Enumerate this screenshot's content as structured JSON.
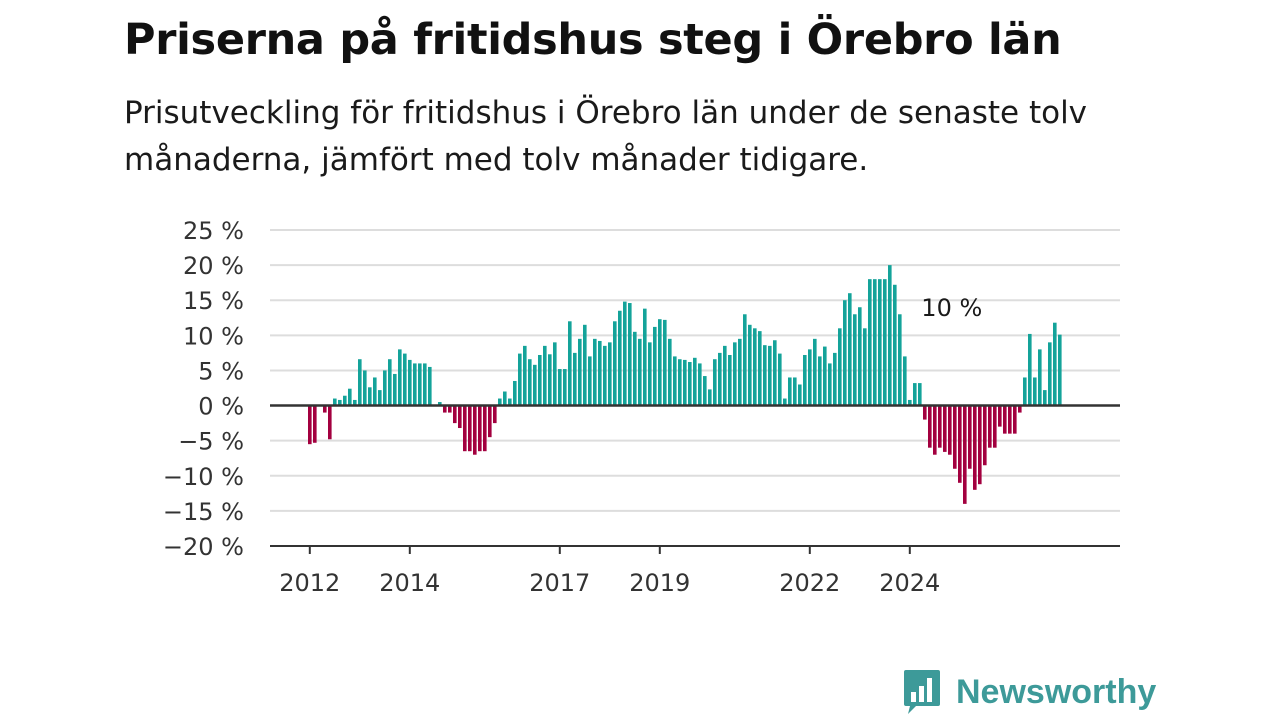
{
  "header": {
    "title": "Priserna på fritidshus steg i Örebro län",
    "subtitle": "Prisutveckling för fritidshus i Örebro län under de senaste tolv månaderna, jämfört med tolv månader tidigare."
  },
  "branding": {
    "name": "Newsworthy",
    "logo_icon": "bar-chart-icon"
  },
  "chart_data": {
    "type": "bar",
    "title": "",
    "xlabel": "",
    "ylabel": "",
    "ylim": [
      -20,
      25
    ],
    "y_ticks": [
      25,
      20,
      15,
      10,
      5,
      0,
      -5,
      -10,
      -15,
      -20
    ],
    "y_tick_labels": [
      "25 %",
      "20 %",
      "15 %",
      "10 %",
      "5 %",
      "0 %",
      "−5 %",
      "−10 %",
      "−15 %",
      "−20 %"
    ],
    "x_tick_labels": [
      "2012",
      "2014",
      "2017",
      "2019",
      "2022",
      "2024"
    ],
    "x_tick_positions": [
      0,
      20,
      50,
      70,
      100,
      120
    ],
    "grid": true,
    "colors": {
      "positive": "#14a39a",
      "negative": "#a3003f",
      "grid": "#dddddd",
      "axis": "#333333"
    },
    "annotation": {
      "text": "10 %",
      "index": 129
    },
    "values": [
      -5.5,
      -5.3,
      0,
      -1,
      -4.8,
      1,
      0.8,
      1.4,
      2.4,
      0.8,
      6.6,
      5,
      2.6,
      4,
      2.2,
      5,
      6.6,
      4.5,
      8,
      7.4,
      6.5,
      6,
      6,
      6,
      5.5,
      0,
      0.5,
      -1,
      -1,
      -2.5,
      -3.2,
      -6.5,
      -6.5,
      -7,
      -6.5,
      -6.5,
      -4.5,
      -2.5,
      1,
      2,
      1,
      3.5,
      7.4,
      8.5,
      6.6,
      5.8,
      7.2,
      8.5,
      7.3,
      9,
      5.2,
      5.2,
      12,
      7.5,
      9.5,
      11.5,
      7,
      9.5,
      9.2,
      8.5,
      9,
      12,
      13.5,
      14.8,
      14.6,
      10.5,
      9.5,
      13.8,
      9,
      11.2,
      12.3,
      12.2,
      9.5,
      7,
      6.6,
      6.5,
      6.2,
      6.8,
      6,
      4.2,
      2.3,
      6.6,
      7.5,
      8.5,
      7.2,
      9,
      9.5,
      13,
      11.5,
      11,
      10.6,
      8.6,
      8.5,
      9.3,
      7.4,
      1,
      4,
      4,
      3,
      7.2,
      8,
      9.5,
      7,
      8.4,
      6,
      7.5,
      11,
      15,
      16,
      13,
      14,
      11,
      18,
      18,
      18,
      18,
      20,
      17.2,
      13,
      7,
      0.8,
      3.2,
      3.2,
      -2,
      -6,
      -7,
      -6,
      -6.6,
      -7,
      -9,
      -11,
      -14,
      -9,
      -12,
      -11.2,
      -8.5,
      -6,
      -6,
      -3,
      -4,
      -4,
      -4,
      -1,
      4,
      10.2,
      4,
      8,
      2.2,
      9,
      11.8,
      10.1
    ]
  }
}
